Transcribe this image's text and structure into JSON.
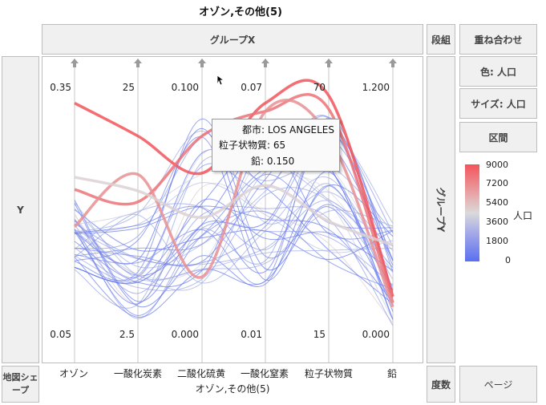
{
  "title": "オゾン,その他(5)",
  "zones": {
    "group_x": "グループX",
    "wrap": "段組",
    "overlay": "重ね合わせ",
    "color": "色: 人口",
    "size": "サイズ: 人口",
    "interval": "区間",
    "y": "Y",
    "group_y": "グループY",
    "map_shape": "地図シェープ",
    "freq": "度数",
    "page": "ページ"
  },
  "chart_data": {
    "type": "parallel",
    "title": "オゾン,その他(5)",
    "xlabel": "オゾン,その他(5)",
    "axes": [
      {
        "name": "オゾン",
        "top": "0.35",
        "bottom": "0.05",
        "range": [
          0.05,
          0.35
        ]
      },
      {
        "name": "一酸化炭素",
        "top": "25",
        "bottom": "2.5",
        "range": [
          2.5,
          25
        ]
      },
      {
        "name": "二酸化硫黄",
        "top": "0.100",
        "bottom": "0.000",
        "range": [
          0.0,
          0.1
        ]
      },
      {
        "name": "一酸化窒素",
        "top": "0.07",
        "bottom": "0.01",
        "range": [
          0.01,
          0.07
        ]
      },
      {
        "name": "粒子状物質",
        "top": "70",
        "bottom": "15",
        "range": [
          15,
          70
        ]
      },
      {
        "name": "鉛",
        "top": "1.200",
        "bottom": "0.000",
        "range": [
          0.0,
          1.2
        ]
      }
    ],
    "legend": {
      "title": "人口",
      "ticks": [
        "9000",
        "7200",
        "5400",
        "3600",
        "1800",
        "0"
      ],
      "range": [
        0,
        9000
      ]
    },
    "highlighted_lines": [
      {
        "population": 9000,
        "values": [
          0.33,
          20.5,
          0.065,
          0.066,
          68,
          0.18
        ]
      },
      {
        "population": 8000,
        "values": [
          0.225,
          14.5,
          0.08,
          0.064,
          65,
          0.15
        ]
      },
      {
        "population": 7000,
        "values": [
          0.18,
          17.0,
          0.023,
          0.064,
          59,
          0.13
        ]
      },
      {
        "population": 4800,
        "values": [
          0.24,
          15.5,
          0.047,
          0.046,
          40,
          0.43
        ]
      }
    ],
    "background_line_count": 40
  },
  "tooltip": {
    "city_label": "都市:",
    "city_value": "LOS ANGELES",
    "pm_label": "粒子状物質:",
    "pm_value": "65",
    "lead_label": "鉛:",
    "lead_value": "0.150"
  }
}
